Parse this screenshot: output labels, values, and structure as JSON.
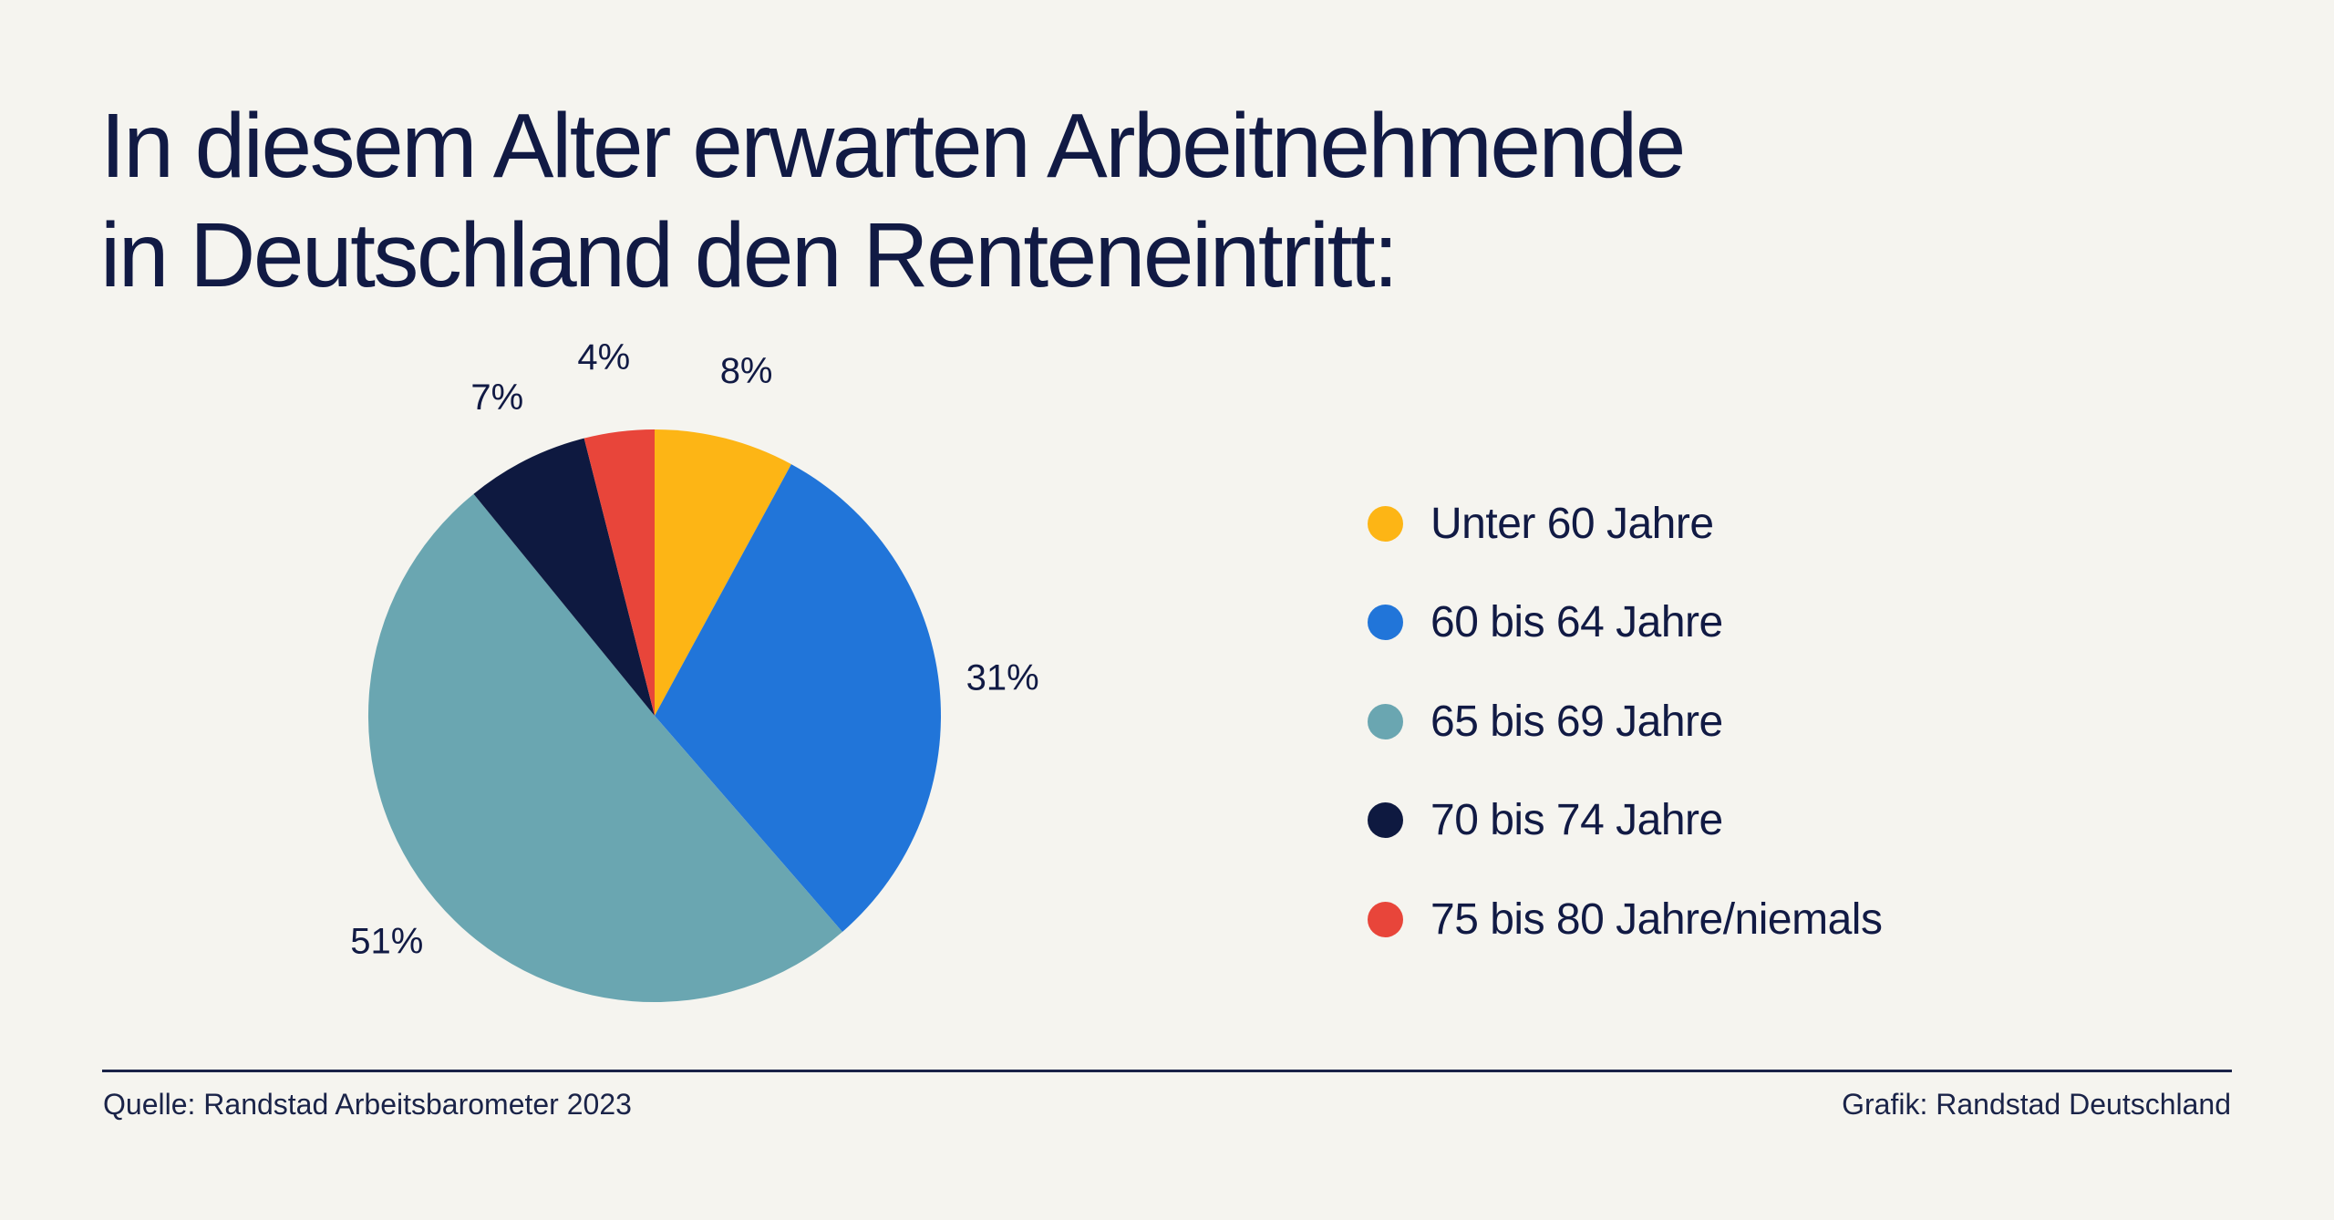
{
  "title": {
    "line1": "In diesem Alter erwarten Arbeitnehmende",
    "line2": "in Deutschland den Renteneintritt:"
  },
  "chart_data": {
    "type": "pie",
    "categories": [
      "Unter 60 Jahre",
      "60 bis 64 Jahre",
      "65 bis 69 Jahre",
      "70 bis 74 Jahre",
      "75 bis 80 Jahre/niemals"
    ],
    "values": [
      8,
      31,
      51,
      7,
      4
    ],
    "labels": [
      "8%",
      "31%",
      "51%",
      "7%",
      "4%"
    ],
    "unit": "%",
    "colors": [
      "#fdb515",
      "#2175d9",
      "#6aa6b1",
      "#0e1940",
      "#e8453a"
    ],
    "start": "12 o'clock",
    "direction": "clockwise",
    "legend_position": "right"
  },
  "footer": {
    "source": "Quelle: Randstad Arbeitsbarometer 2023",
    "credit": "Grafik: Randstad Deutschland"
  }
}
